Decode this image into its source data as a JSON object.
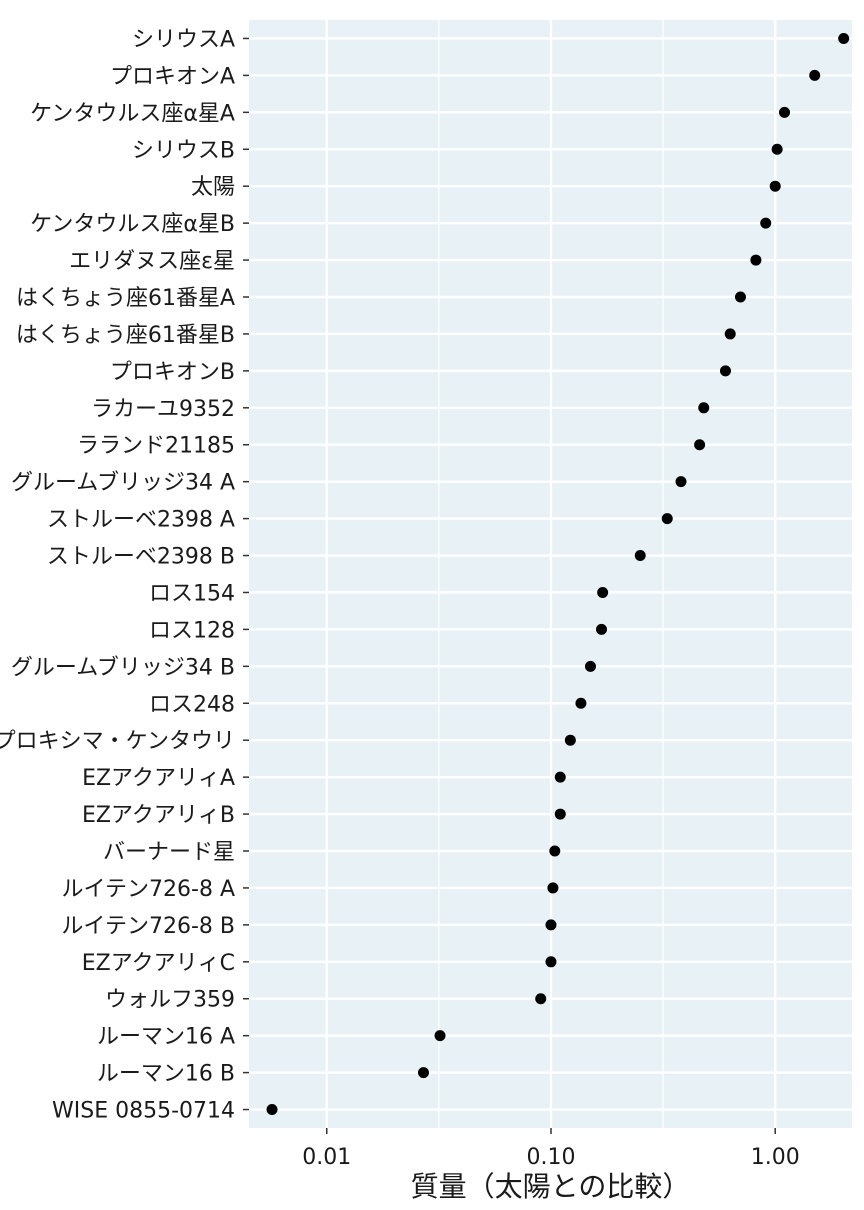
{
  "chart_data": {
    "type": "scatter",
    "title": "",
    "xlabel": "質量（太陽との比較）",
    "ylabel": "",
    "x_scale": "log",
    "xlim": [
      0.0045,
      2.2
    ],
    "x_ticks": [
      {
        "value": 0.01,
        "label": "0.01"
      },
      {
        "value": 0.1,
        "label": "0.10"
      },
      {
        "value": 1.0,
        "label": "1.00"
      }
    ],
    "grid": true,
    "legend": "none",
    "colors": {
      "panel_background": "#e8f1f6",
      "grid": "#ffffff",
      "point": "#000000",
      "text": "#1a1a1a"
    },
    "points": [
      {
        "label": "シリウスA",
        "x": 2.02
      },
      {
        "label": "プロキオンA",
        "x": 1.5
      },
      {
        "label": "ケンタウルス座α星A",
        "x": 1.1
      },
      {
        "label": "シリウスB",
        "x": 1.02
      },
      {
        "label": "太陽",
        "x": 1.0
      },
      {
        "label": "ケンタウルス座α星B",
        "x": 0.907
      },
      {
        "label": "エリダヌス座ε星",
        "x": 0.82
      },
      {
        "label": "はくちょう座61番星A",
        "x": 0.7
      },
      {
        "label": "はくちょう座61番星B",
        "x": 0.63
      },
      {
        "label": "プロキオンB",
        "x": 0.6
      },
      {
        "label": "ラカーユ9352",
        "x": 0.48
      },
      {
        "label": "ラランド21185",
        "x": 0.46
      },
      {
        "label": "グルームブリッジ34 A",
        "x": 0.38
      },
      {
        "label": "ストルーベ2398 A",
        "x": 0.33
      },
      {
        "label": "ストルーベ2398 B",
        "x": 0.25
      },
      {
        "label": "ロス154",
        "x": 0.17
      },
      {
        "label": "ロス128",
        "x": 0.168
      },
      {
        "label": "グルームブリッジ34 B",
        "x": 0.15
      },
      {
        "label": "ロス248",
        "x": 0.136
      },
      {
        "label": "プロキシマ・ケンタウリ",
        "x": 0.122
      },
      {
        "label": "EZアクアリィA",
        "x": 0.11
      },
      {
        "label": "EZアクアリィB",
        "x": 0.11
      },
      {
        "label": "バーナード星",
        "x": 0.104
      },
      {
        "label": "ルイテン726-8 A",
        "x": 0.102
      },
      {
        "label": "ルイテン726-8 B",
        "x": 0.1
      },
      {
        "label": "EZアクアリィC",
        "x": 0.1
      },
      {
        "label": "ウォルフ359",
        "x": 0.09
      },
      {
        "label": "ルーマン16 A",
        "x": 0.032
      },
      {
        "label": "ルーマン16 B",
        "x": 0.027
      },
      {
        "label": "WISE 0855-0714",
        "x": 0.0057
      }
    ]
  }
}
